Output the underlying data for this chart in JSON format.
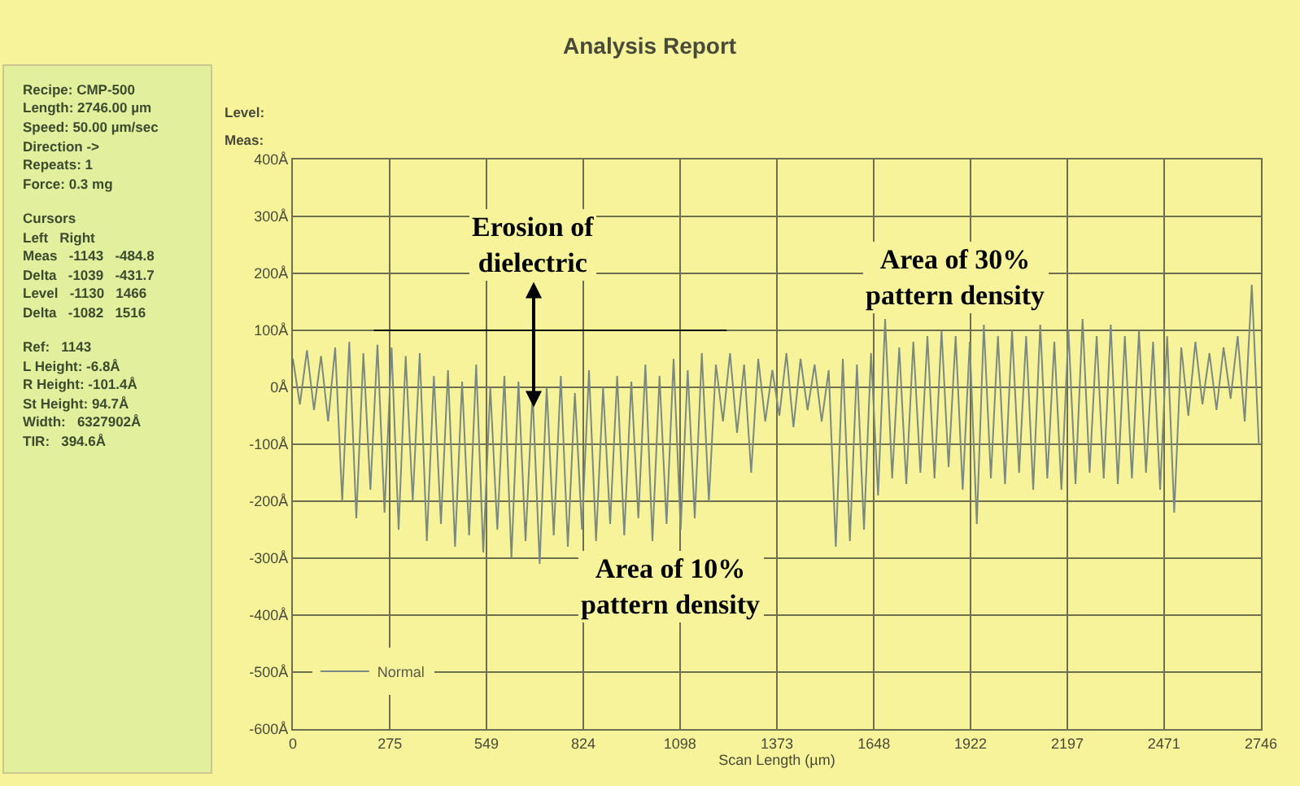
{
  "chart_data": [
    {
      "type": "other",
      "annotations": [
        "Recipe: CMP-500",
        "Length: 2746.00 µm",
        "Speed: 50.00 µm/sec",
        "Direction ->",
        "Repeats: 1",
        "Force: 0.3 mg",
        "Cursors",
        "Left   Right",
        "Meas   -1143   -484.8",
        "Delta   -1039   -431.7",
        "Level   -1130   1466",
        "Delta   -1082   1516",
        "Ref:   1143",
        "L Height: -6.8Å",
        "R Height: -101.4Å",
        "St Height: 94.7Å",
        "Width:   6327902Å",
        "TIR:   394.6Å"
      ]
    },
    {
      "type": "line",
      "title": "Analysis Report",
      "xlabel": "Scan Length (µm)",
      "xlim": [
        0,
        2746
      ],
      "xticks": [
        0,
        275,
        549,
        824,
        1098,
        1373,
        1648,
        1922,
        2197,
        2471,
        2746
      ],
      "ylim": [
        -600,
        400
      ],
      "yticks": [
        {
          "value": 400,
          "label": "400Å"
        },
        {
          "value": 300,
          "label": "300Å"
        },
        {
          "value": 200,
          "label": "200Å"
        },
        {
          "value": 100,
          "label": "100Å"
        },
        {
          "value": 0,
          "label": "0Å"
        },
        {
          "value": -100,
          "label": "-100Å"
        },
        {
          "value": -200,
          "label": "-200Å"
        },
        {
          "value": -300,
          "label": "-300Å"
        },
        {
          "value": -400,
          "label": "-400Å"
        },
        {
          "value": -500,
          "label": "-500Å"
        },
        {
          "value": -600,
          "label": "-600Å"
        }
      ],
      "grid": true,
      "legend": "bottom left",
      "marker": "none",
      "line_style": "solid",
      "annotations": [
        "Level:",
        "Meas:",
        {
          "text": "Erosion of\ndielectric",
          "x": 683,
          "y": -35
        },
        "Area of 10%\npattern density",
        "Area of 30%\npattern density"
      ],
      "series": [
        {
          "name": "Normal",
          "color": "#7b8a80",
          "x": [
            0,
            20,
            40,
            60,
            80,
            100,
            120,
            140,
            160,
            180,
            200,
            220,
            240,
            260,
            280,
            300,
            320,
            340,
            360,
            380,
            400,
            420,
            440,
            460,
            480,
            500,
            520,
            540,
            560,
            580,
            600,
            620,
            640,
            660,
            680,
            700,
            720,
            740,
            760,
            780,
            800,
            820,
            840,
            860,
            880,
            900,
            920,
            940,
            960,
            980,
            1000,
            1020,
            1040,
            1060,
            1080,
            1100,
            1120,
            1140,
            1160,
            1180,
            1200,
            1220,
            1240,
            1260,
            1280,
            1300,
            1320,
            1340,
            1360,
            1380,
            1400,
            1420,
            1440,
            1460,
            1480,
            1500,
            1520,
            1540,
            1560,
            1580,
            1600,
            1620,
            1640,
            1660,
            1680,
            1700,
            1720,
            1740,
            1760,
            1780,
            1800,
            1820,
            1840,
            1860,
            1880,
            1900,
            1920,
            1940,
            1960,
            1980,
            2000,
            2020,
            2040,
            2060,
            2080,
            2100,
            2120,
            2140,
            2160,
            2180,
            2200,
            2220,
            2240,
            2260,
            2280,
            2300,
            2320,
            2340,
            2360,
            2380,
            2400,
            2420,
            2440,
            2460,
            2480,
            2500,
            2520,
            2540,
            2560,
            2580,
            2600,
            2620,
            2640,
            2660,
            2680,
            2700,
            2720,
            2740
          ],
          "values": [
            50,
            -30,
            65,
            -40,
            55,
            -60,
            70,
            -200,
            80,
            -230,
            60,
            -180,
            75,
            -220,
            70,
            -250,
            55,
            -200,
            60,
            -270,
            20,
            -240,
            30,
            -280,
            10,
            -260,
            40,
            -290,
            0,
            -250,
            20,
            -300,
            10,
            -270,
            -10,
            -310,
            0,
            -260,
            20,
            -280,
            -10,
            -250,
            30,
            -270,
            0,
            -240,
            20,
            -260,
            10,
            -230,
            40,
            -270,
            20,
            -240,
            50,
            -250,
            30,
            -230,
            60,
            -200,
            40,
            -60,
            60,
            -80,
            40,
            -150,
            50,
            -60,
            30,
            -50,
            60,
            -70,
            50,
            -40,
            40,
            -60,
            30,
            -280,
            50,
            -270,
            40,
            -250,
            60,
            -190,
            120,
            -160,
            70,
            -170,
            80,
            -150,
            90,
            -160,
            100,
            -140,
            90,
            -180,
            80,
            -240,
            110,
            -160,
            90,
            -170,
            100,
            -150,
            90,
            -180,
            110,
            -160,
            80,
            -180,
            100,
            -170,
            120,
            -150,
            90,
            -160,
            110,
            -170,
            90,
            -160,
            100,
            -150,
            80,
            -180,
            90,
            -220,
            70,
            -50,
            80,
            -30,
            60,
            -40,
            70,
            -20,
            90,
            -60,
            180,
            -100
          ]
        },
        {
          "color": "#000000",
          "x": [
            230,
            1230
          ],
          "values": [
            100,
            100
          ]
        }
      ]
    }
  ]
}
